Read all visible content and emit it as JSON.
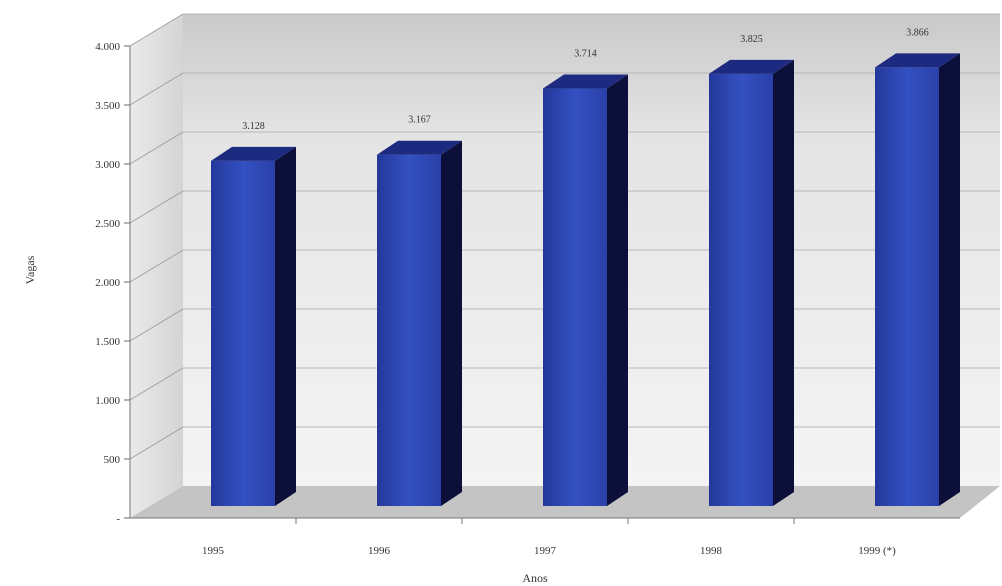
{
  "chart_data": {
    "type": "bar",
    "title": "",
    "xlabel": "Anos",
    "ylabel": "Vagas",
    "categories": [
      "1995",
      "1996",
      "1997",
      "1998",
      "1999 (*)"
    ],
    "values": [
      3128,
      3167,
      3714,
      3825,
      3866
    ],
    "value_labels": [
      "3.128",
      "3.167",
      "3.714",
      "3.825",
      "3.866"
    ],
    "y_ticks": [
      "-",
      "500",
      "1.000",
      "1.500",
      "2.000",
      "2.500",
      "3.000",
      "3.500",
      "4.000"
    ],
    "y_tick_values": [
      0,
      500,
      1000,
      1500,
      2000,
      2500,
      3000,
      3500,
      4000
    ],
    "ylim": [
      0,
      4000
    ],
    "grid": true,
    "legend": "none",
    "style": "3d-column",
    "colors": {
      "bar_front": "#2b45b0",
      "bar_side": "#0b0f3a",
      "bar_top": "#1c2a80",
      "wall": "#ececec",
      "floor": "#bdbdbd"
    }
  }
}
